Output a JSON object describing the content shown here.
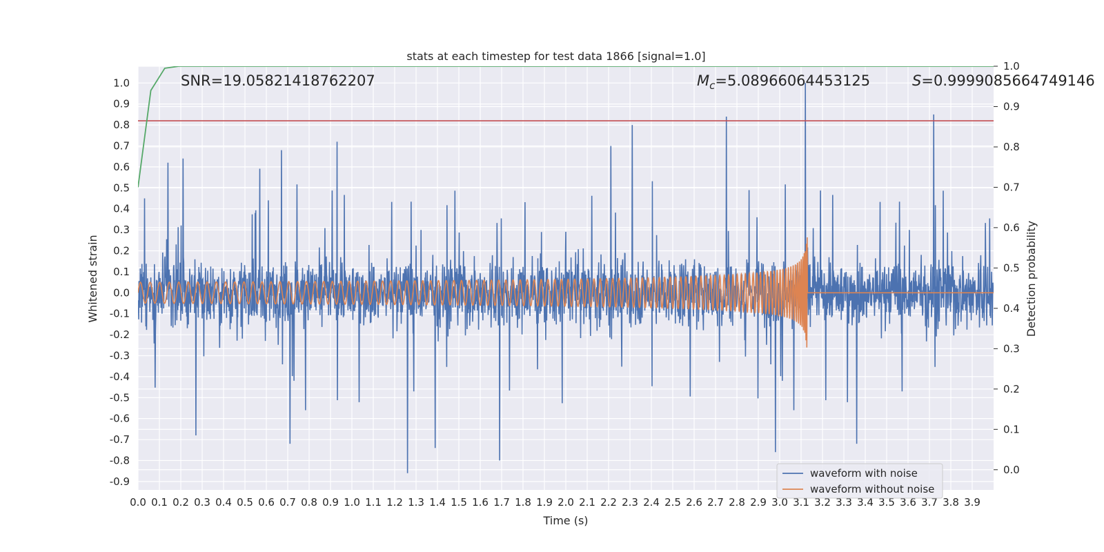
{
  "chart_data": {
    "type": "line",
    "title": "stats at each timestep for test data 1866 [signal=1.0]",
    "xlabel": "Time (s)",
    "ylabel": "Whitened strain",
    "y2label": "Detection probability",
    "xlim": [
      0.0,
      4.0
    ],
    "ylim": [
      -0.94,
      1.08
    ],
    "y2lim": [
      -0.05,
      1.0
    ],
    "xticks": [
      "0.0",
      "0.1",
      "0.2",
      "0.3",
      "0.4",
      "0.5",
      "0.6",
      "0.7",
      "0.8",
      "0.9",
      "1.0",
      "1.1",
      "1.2",
      "1.3",
      "1.4",
      "1.5",
      "1.6",
      "1.7",
      "1.8",
      "1.9",
      "2.0",
      "2.1",
      "2.2",
      "2.3",
      "2.4",
      "2.5",
      "2.6",
      "2.7",
      "2.8",
      "2.9",
      "3.0",
      "3.1",
      "3.2",
      "3.3",
      "3.4",
      "3.5",
      "3.6",
      "3.7",
      "3.8",
      "3.9"
    ],
    "yticks": [
      "1.0",
      "0.9",
      "0.8",
      "0.7",
      "0.6",
      "0.5",
      "0.4",
      "0.3",
      "0.2",
      "0.1",
      "0.0",
      "-0.1",
      "-0.2",
      "-0.3",
      "-0.4",
      "-0.5",
      "-0.6",
      "-0.7",
      "-0.8",
      "-0.9"
    ],
    "y2ticks": [
      "1.0",
      "0.9",
      "0.8",
      "0.7",
      "0.6",
      "0.5",
      "0.4",
      "0.3",
      "0.2",
      "0.1",
      "0.0"
    ],
    "grid": true,
    "legend_position": "lower-right",
    "background": "#eaeaf2",
    "series": [
      {
        "name": "waveform with noise",
        "color": "#4c72b0",
        "axis": "left",
        "note": "dense noisy trace, roughly ±0.4 with spikes to 1.0"
      },
      {
        "name": "waveform without noise",
        "color": "#dd8452",
        "axis": "left",
        "chirp_start_amplitude": 0.05,
        "chirp_peak_amplitude": 0.44,
        "merger_time": 3.13,
        "post_merger_value": 0.0
      },
      {
        "name": "",
        "color": "#55a868",
        "axis": "right",
        "x": [
          0.0,
          0.06,
          0.125,
          0.19,
          0.25,
          4.0
        ],
        "values": [
          0.7,
          0.94,
          0.995,
          1.0,
          1.0,
          1.0
        ]
      },
      {
        "name": "",
        "color": "#c44e52",
        "axis": "left",
        "type": "hline",
        "value": 0.82
      }
    ],
    "noise_spikes": [
      {
        "x": 0.03,
        "y": 0.45
      },
      {
        "x": 0.14,
        "y": 0.62
      },
      {
        "x": 0.21,
        "y": 0.64
      },
      {
        "x": 0.27,
        "y": -0.68
      },
      {
        "x": 0.67,
        "y": 0.68
      },
      {
        "x": 0.71,
        "y": -0.72
      },
      {
        "x": 0.93,
        "y": 0.72
      },
      {
        "x": 1.26,
        "y": -0.86
      },
      {
        "x": 1.39,
        "y": -0.74
      },
      {
        "x": 1.69,
        "y": -0.8
      },
      {
        "x": 2.21,
        "y": 0.7
      },
      {
        "x": 2.31,
        "y": 0.8
      },
      {
        "x": 2.75,
        "y": 0.84
      },
      {
        "x": 2.98,
        "y": -0.76
      },
      {
        "x": 3.12,
        "y": 1.0
      },
      {
        "x": 3.36,
        "y": -0.72
      },
      {
        "x": 3.72,
        "y": 0.85
      }
    ],
    "annotations": [
      {
        "prefix": "SNR=",
        "value": "19.05821418762207"
      },
      {
        "prefix_italic": "M",
        "subscript": "c",
        "prefix": "=",
        "value": "5.08966064453125"
      },
      {
        "prefix_italic": "S",
        "prefix": "=",
        "value": "0.9999085664749146"
      }
    ]
  }
}
